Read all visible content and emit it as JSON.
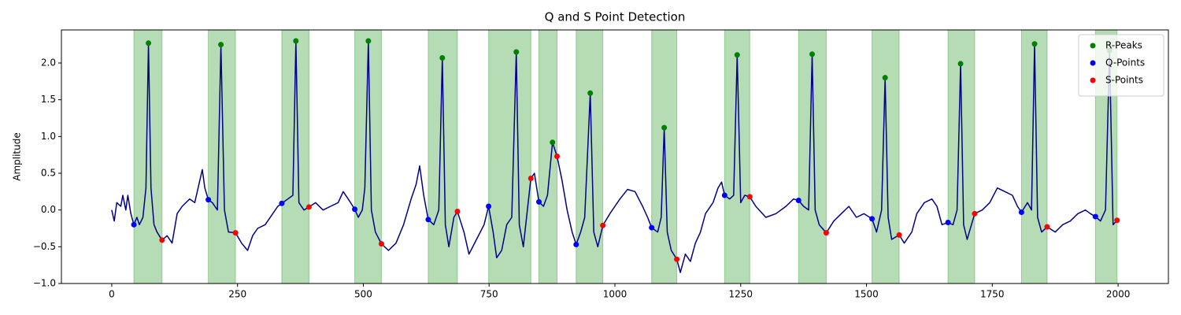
{
  "chart_data": {
    "type": "line",
    "title": "Q and S Point Detection",
    "ylabel": "Amplitude",
    "xlim": [
      -100,
      2100
    ],
    "ylim": [
      -1.0,
      2.45
    ],
    "xticks": [
      0,
      250,
      500,
      750,
      1000,
      1250,
      1500,
      1750,
      2000
    ],
    "yticks": [
      {
        "value": -1.0,
        "label": "−1.0"
      },
      {
        "value": -0.5,
        "label": "−0.5"
      },
      {
        "value": 0.0,
        "label": "0.0"
      },
      {
        "value": 0.5,
        "label": "0.5"
      },
      {
        "value": 1.0,
        "label": "1.0"
      },
      {
        "value": 1.5,
        "label": "1.5"
      },
      {
        "value": 2.0,
        "label": "2.0"
      }
    ],
    "legend": "upper right",
    "region_color": "#2e9b2e",
    "signal": {
      "color": "#00008b",
      "x": [
        0,
        5,
        10,
        18,
        22,
        28,
        32,
        38,
        44,
        50,
        55,
        62,
        68,
        73,
        78,
        84,
        90,
        100,
        110,
        120,
        130,
        140,
        155,
        165,
        175,
        180,
        185,
        192,
        200,
        210,
        217,
        224,
        232,
        246,
        258,
        270,
        280,
        290,
        305,
        320,
        330,
        338,
        350,
        360,
        366,
        372,
        382,
        392,
        405,
        420,
        435,
        450,
        460,
        470,
        483,
        490,
        498,
        503,
        510,
        516,
        524,
        536,
        550,
        565,
        580,
        595,
        605,
        612,
        620,
        629,
        640,
        650,
        657,
        663,
        670,
        680,
        687,
        700,
        710,
        725,
        740,
        749,
        758,
        765,
        775,
        785,
        795,
        804,
        810,
        818,
        826,
        833,
        840,
        849,
        858,
        866,
        876,
        885,
        895,
        905,
        915,
        923,
        932,
        940,
        951,
        958,
        966,
        976,
        990,
        1000,
        1010,
        1025,
        1040,
        1055,
        1065,
        1073,
        1085,
        1092,
        1098,
        1104,
        1112,
        1123,
        1130,
        1140,
        1150,
        1160,
        1170,
        1180,
        1195,
        1205,
        1212,
        1218,
        1228,
        1236,
        1243,
        1250,
        1258,
        1268,
        1280,
        1300,
        1320,
        1340,
        1355,
        1365,
        1375,
        1385,
        1392,
        1398,
        1406,
        1420,
        1435,
        1450,
        1465,
        1480,
        1495,
        1511,
        1520,
        1530,
        1537,
        1543,
        1550,
        1565,
        1575,
        1590,
        1600,
        1615,
        1630,
        1640,
        1650,
        1662,
        1672,
        1680,
        1687,
        1693,
        1700,
        1715,
        1730,
        1745,
        1760,
        1775,
        1790,
        1800,
        1808,
        1820,
        1828,
        1834,
        1840,
        1848,
        1859,
        1875,
        1890,
        1905,
        1920,
        1935,
        1945,
        1955,
        1965,
        1975,
        1983,
        1990,
        1998,
        2000
      ],
      "values": [
        0,
        -0.15,
        0.1,
        0.05,
        0.2,
        0.0,
        0.2,
        -0.05,
        -0.2,
        -0.1,
        -0.2,
        -0.1,
        0.3,
        2.27,
        0.3,
        -0.2,
        -0.3,
        -0.41,
        -0.35,
        -0.45,
        -0.05,
        0.05,
        0.15,
        0.1,
        0.4,
        0.55,
        0.3,
        0.14,
        0.1,
        0.0,
        2.25,
        0.0,
        -0.3,
        -0.31,
        -0.45,
        -0.55,
        -0.35,
        -0.25,
        -0.2,
        -0.05,
        0.05,
        0.09,
        0.15,
        0.2,
        2.3,
        0.1,
        0.0,
        0.04,
        0.1,
        0.0,
        0.05,
        0.1,
        0.25,
        0.15,
        0.01,
        -0.1,
        0.0,
        0.3,
        2.3,
        0.0,
        -0.3,
        -0.46,
        -0.55,
        -0.45,
        -0.2,
        0.15,
        0.35,
        0.6,
        0.2,
        -0.13,
        -0.2,
        0.0,
        2.07,
        -0.2,
        -0.5,
        -0.1,
        -0.02,
        -0.3,
        -0.6,
        -0.4,
        -0.2,
        0.05,
        -0.3,
        -0.65,
        -0.55,
        -0.2,
        -0.1,
        2.15,
        -0.2,
        -0.5,
        0.0,
        0.43,
        0.5,
        0.11,
        0.05,
        0.2,
        0.92,
        0.73,
        0.4,
        0.0,
        -0.3,
        -0.47,
        -0.3,
        -0.1,
        1.59,
        -0.3,
        -0.5,
        -0.21,
        -0.05,
        0.05,
        0.15,
        0.28,
        0.25,
        0.05,
        -0.1,
        -0.24,
        -0.3,
        -0.1,
        1.12,
        -0.3,
        -0.55,
        -0.67,
        -0.85,
        -0.6,
        -0.7,
        -0.45,
        -0.3,
        -0.05,
        0.1,
        0.3,
        0.38,
        0.2,
        0.15,
        0.2,
        2.11,
        0.1,
        0.2,
        0.18,
        0.05,
        -0.1,
        -0.05,
        0.05,
        0.15,
        0.13,
        0.05,
        0.0,
        2.12,
        0.0,
        -0.2,
        -0.31,
        -0.15,
        -0.05,
        0.05,
        -0.1,
        -0.05,
        -0.12,
        -0.3,
        0.0,
        1.8,
        -0.1,
        -0.4,
        -0.34,
        -0.45,
        -0.3,
        -0.05,
        0.1,
        0.15,
        0.05,
        -0.2,
        -0.17,
        -0.2,
        0.0,
        1.99,
        -0.2,
        -0.4,
        -0.05,
        0.0,
        0.1,
        0.3,
        0.25,
        0.2,
        0.05,
        -0.03,
        0.1,
        0.0,
        2.26,
        -0.1,
        -0.3,
        -0.23,
        -0.3,
        -0.2,
        -0.15,
        -0.05,
        0.0,
        -0.05,
        -0.09,
        -0.15,
        0.0,
        2.17,
        -0.2,
        -0.14,
        -0.15
      ]
    },
    "series": [
      {
        "name": "R-Peaks",
        "color": "#008000",
        "x": [
          73,
          217,
          366,
          510,
          657,
          804,
          876,
          951,
          1098,
          1243,
          1392,
          1537,
          1687,
          1834,
          1983
        ],
        "values": [
          2.27,
          2.25,
          2.3,
          2.3,
          2.07,
          2.15,
          0.92,
          1.59,
          1.12,
          2.11,
          2.12,
          1.8,
          1.99,
          2.26,
          2.17
        ]
      },
      {
        "name": "Q-Points",
        "color": "#0000ff",
        "x": [
          44,
          192,
          338,
          483,
          629,
          749,
          849,
          923,
          1073,
          1218,
          1365,
          1511,
          1662,
          1808,
          1955
        ],
        "values": [
          -0.2,
          0.14,
          0.09,
          0.01,
          -0.13,
          0.05,
          0.11,
          -0.47,
          -0.24,
          0.2,
          0.13,
          -0.12,
          -0.17,
          -0.03,
          -0.09
        ]
      },
      {
        "name": "S-Points",
        "color": "#ff0000",
        "x": [
          100,
          246,
          392,
          536,
          687,
          833,
          885,
          976,
          1123,
          1268,
          1420,
          1565,
          1715,
          1859,
          1998
        ],
        "values": [
          -0.41,
          -0.31,
          0.04,
          -0.46,
          -0.02,
          0.43,
          0.73,
          -0.21,
          -0.67,
          0.18,
          -0.31,
          -0.34,
          -0.05,
          -0.23,
          -0.14
        ]
      }
    ]
  }
}
